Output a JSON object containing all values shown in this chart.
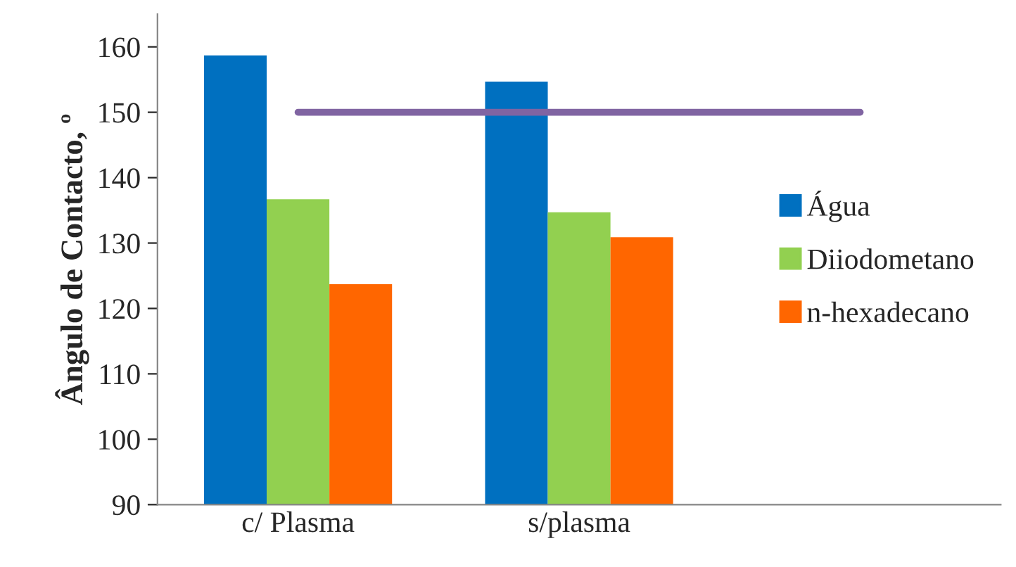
{
  "chart_data": {
    "type": "bar",
    "ylabel": "Ângulo de Contacto, º",
    "categories": [
      "c/ Plasma",
      "s/plasma",
      null
    ],
    "series": [
      {
        "name": "Água",
        "color": "#0070c0",
        "values": [
          158.7,
          154.7,
          null
        ]
      },
      {
        "name": "Diiodometano",
        "color": "#92d050",
        "values": [
          136.7,
          134.7,
          null
        ]
      },
      {
        "name": "n-hexadecano",
        "color": "#ff6600",
        "values": [
          123.7,
          130.9,
          null
        ]
      },
      {
        "type": "line",
        "color": "#8064a2",
        "values": [
          150,
          150,
          150
        ]
      }
    ],
    "ylim": [
      90,
      165
    ],
    "yticks": [
      90,
      100,
      110,
      120,
      130,
      140,
      150,
      160
    ],
    "legend": "right",
    "grid": false
  }
}
